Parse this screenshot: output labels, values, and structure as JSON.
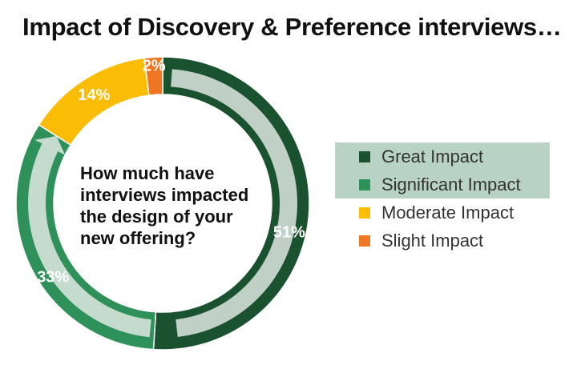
{
  "chart_data": {
    "type": "pie",
    "title": "Impact of Discovery & Preference interviews…",
    "center_text": [
      "How much have",
      "interviews impacted",
      "the design of your",
      "new offering?"
    ],
    "categories": [
      "Great Impact",
      "Significant Impact",
      "Moderate Impact",
      "Slight Impact"
    ],
    "values": [
      51,
      33,
      14,
      2
    ],
    "data_labels": [
      "51%",
      "33%",
      "14%",
      "2%"
    ],
    "colors": [
      "#1a5230",
      "#2e9159",
      "#fbbc05",
      "#ef7622"
    ],
    "legend_position": "right",
    "legend_highlighted": [
      "Great Impact",
      "Significant Impact"
    ]
  }
}
